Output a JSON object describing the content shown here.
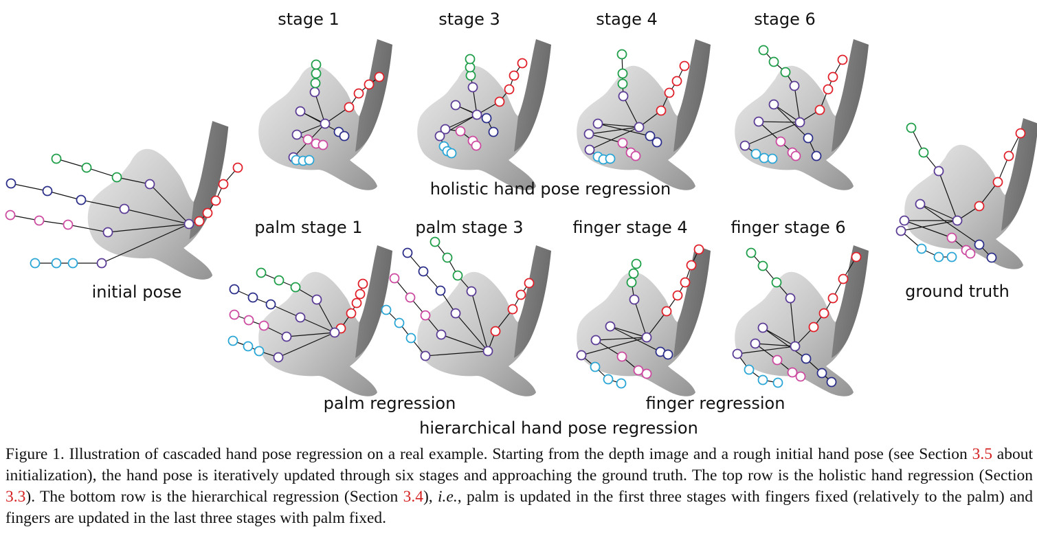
{
  "labels": {
    "initial": "initial pose",
    "ground_truth": "ground truth",
    "holistic_row": "holistic hand pose regression",
    "palm_reg": "palm regression",
    "finger_reg": "finger regression",
    "hierarchical": "hierarchical hand pose regression",
    "top_stages": [
      "stage 1",
      "stage 3",
      "stage 4",
      "stage 6"
    ],
    "bottom_stages": [
      "palm stage 1",
      "palm stage 3",
      "finger stage 4",
      "finger stage 6"
    ]
  },
  "caption": {
    "p1": "Figure 1. Illustration of cascaded hand pose regression on a real example. Starting from the depth image and a rough initial hand pose (see Section ",
    "ref1": "3.5",
    "p2": " about initialization), the hand pose is iteratively updated through six stages and approaching the ground truth. The top row is the holistic hand regression (Section ",
    "ref2": "3.3",
    "p3": "). The bottom row is the hierarchical regression (Section ",
    "ref3": "3.4",
    "p4": "), ",
    "ie": "i.e.",
    "p5": ", palm is updated in the first three stages with fingers fixed (relatively to the palm) and fingers are updated in the last three stages with palm fixed."
  },
  "colors": {
    "thumb": "#e0202a",
    "index": "#1f9e4a",
    "middle": "#2c2f8a",
    "ring": "#cc4aa0",
    "little": "#29a5d6",
    "palm": "#5b3c96"
  }
}
